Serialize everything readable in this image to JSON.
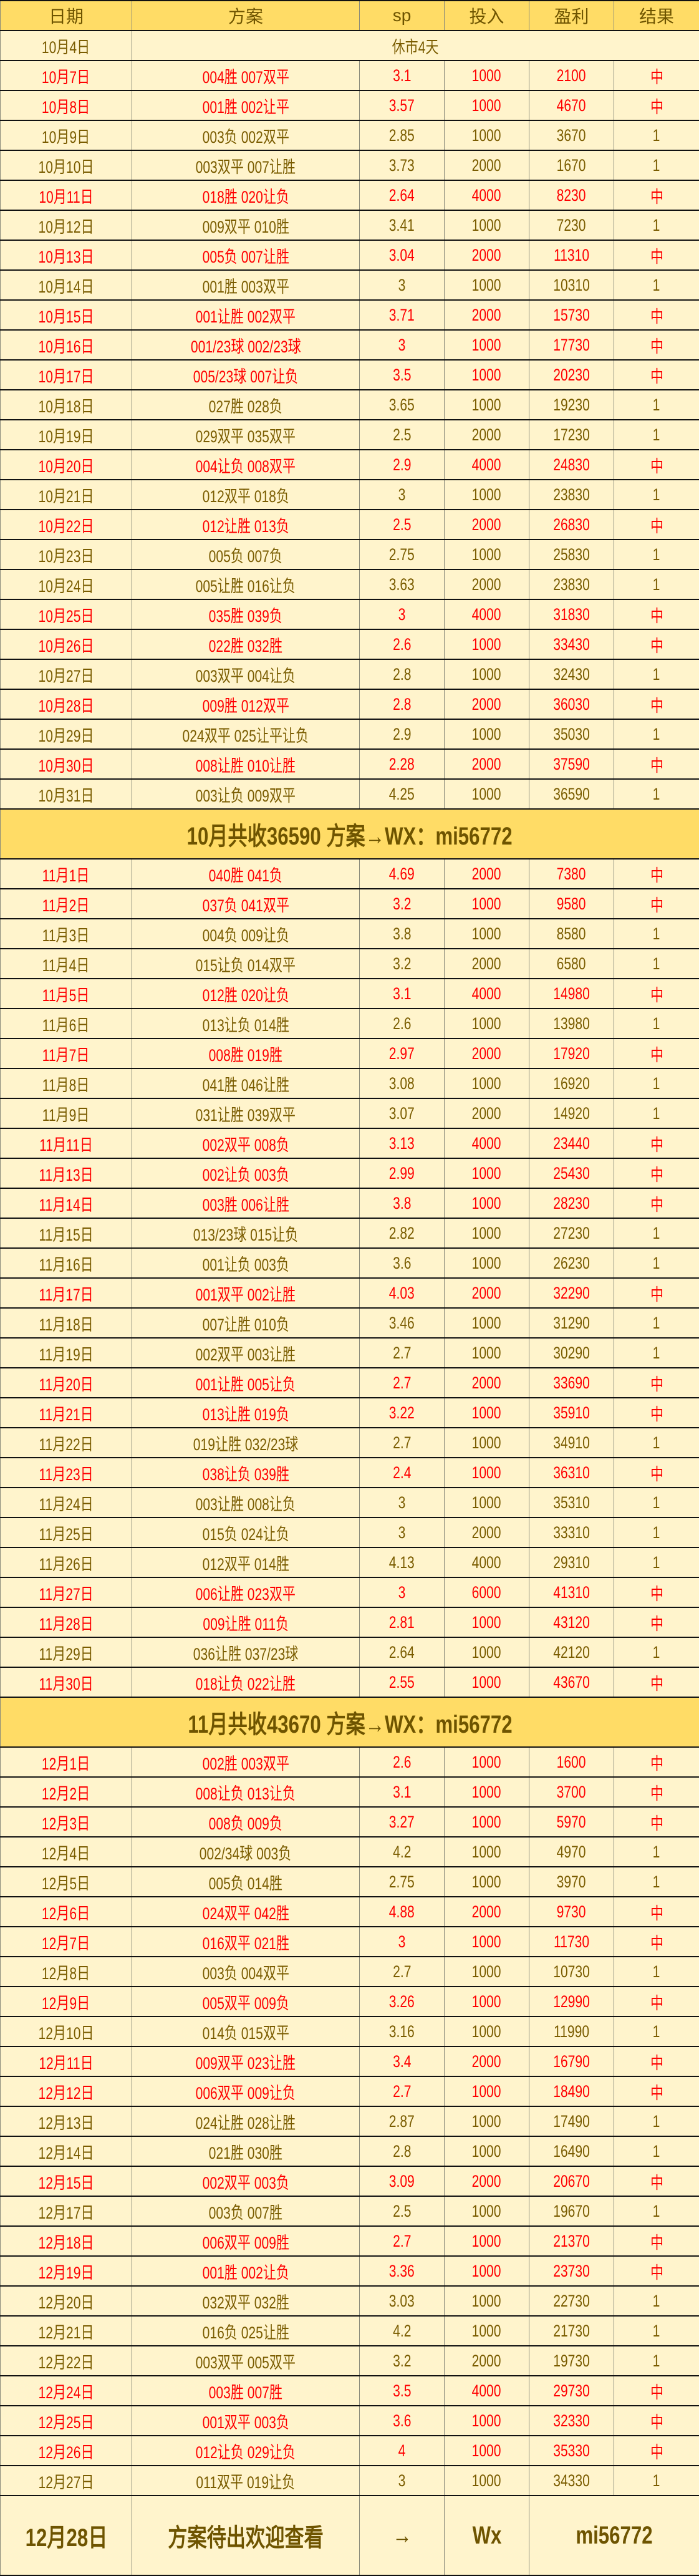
{
  "colors": {
    "header_bg": "#FFDC66",
    "row_bg": "#FFF4CC",
    "text": "#7A5C00",
    "hit": "#FF0000"
  },
  "headers": [
    "日期",
    "方案",
    "sp",
    "投入",
    "盈利",
    "结果"
  ],
  "rest_row": {
    "date": "10月4日",
    "note": "休市4天"
  },
  "october": [
    [
      "10月7日",
      "004胜  007双平",
      "3.1",
      "1000",
      "2100",
      "中"
    ],
    [
      "10月8日",
      "001胜  002让平",
      "3.57",
      "1000",
      "4670",
      "中"
    ],
    [
      "10月9日",
      "003负  002双平",
      "2.85",
      "1000",
      "3670",
      "1"
    ],
    [
      "10月10日",
      "003双平  007让胜",
      "3.73",
      "2000",
      "1670",
      "1"
    ],
    [
      "10月11日",
      "018胜  020让负",
      "2.64",
      "4000",
      "8230",
      "中"
    ],
    [
      "10月12日",
      "009双平  010胜",
      "3.41",
      "1000",
      "7230",
      "1"
    ],
    [
      "10月13日",
      "005负  007让胜",
      "3.04",
      "2000",
      "11310",
      "中"
    ],
    [
      "10月14日",
      "001胜  003双平",
      "3",
      "1000",
      "10310",
      "1"
    ],
    [
      "10月15日",
      "001让胜  002双平",
      "3.71",
      "2000",
      "15730",
      "中"
    ],
    [
      "10月16日",
      "001/23球  002/23球",
      "3",
      "1000",
      "17730",
      "中"
    ],
    [
      "10月17日",
      "005/23球  007让负",
      "3.5",
      "1000",
      "20230",
      "中"
    ],
    [
      "10月18日",
      "027胜  028负",
      "3.65",
      "1000",
      "19230",
      "1"
    ],
    [
      "10月19日",
      "029双平  035双平",
      "2.5",
      "2000",
      "17230",
      "1"
    ],
    [
      "10月20日",
      "004让负  008双平",
      "2.9",
      "4000",
      "24830",
      "中"
    ],
    [
      "10月21日",
      "012双平  018负",
      "3",
      "1000",
      "23830",
      "1"
    ],
    [
      "10月22日",
      "012让胜  013负",
      "2.5",
      "2000",
      "26830",
      "中"
    ],
    [
      "10月23日",
      "005负  007负",
      "2.75",
      "1000",
      "25830",
      "1"
    ],
    [
      "10月24日",
      "005让胜  016让负",
      "3.63",
      "2000",
      "23830",
      "1"
    ],
    [
      "10月25日",
      "035胜  039负",
      "3",
      "4000",
      "31830",
      "中"
    ],
    [
      "10月26日",
      "022胜  032胜",
      "2.6",
      "1000",
      "33430",
      "中"
    ],
    [
      "10月27日",
      "003双平  004让负",
      "2.8",
      "1000",
      "32430",
      "1"
    ],
    [
      "10月28日",
      "009胜  012双平",
      "2.8",
      "2000",
      "36030",
      "中"
    ],
    [
      "10月29日",
      "024双平  025让平让负",
      "2.9",
      "1000",
      "35030",
      "1"
    ],
    [
      "10月30日",
      "008让胜  010让胜",
      "2.28",
      "2000",
      "37590",
      "中"
    ],
    [
      "10月31日",
      "003让负  009双平",
      "4.25",
      "1000",
      "36590",
      "1"
    ]
  ],
  "october_summary": "10月共收36590 方案→WX：mi56772",
  "november": [
    [
      "11月1日",
      "040胜  041负",
      "4.69",
      "2000",
      "7380",
      "中"
    ],
    [
      "11月2日",
      "037负  041双平",
      "3.2",
      "1000",
      "9580",
      "中"
    ],
    [
      "11月3日",
      "004负  009让负",
      "3.8",
      "1000",
      "8580",
      "1"
    ],
    [
      "11月4日",
      "015让负  014双平",
      "3.2",
      "2000",
      "6580",
      "1"
    ],
    [
      "11月5日",
      "012胜  020让负",
      "3.1",
      "4000",
      "14980",
      "中"
    ],
    [
      "11月6日",
      "013让负  014胜",
      "2.6",
      "1000",
      "13980",
      "1"
    ],
    [
      "11月7日",
      "008胜  019胜",
      "2.97",
      "2000",
      "17920",
      "中"
    ],
    [
      "11月8日",
      "041胜  046让胜",
      "3.08",
      "1000",
      "16920",
      "1"
    ],
    [
      "11月9日",
      "031让胜  039双平",
      "3.07",
      "2000",
      "14920",
      "1"
    ],
    [
      "11月11日",
      "002双平  008负",
      "3.13",
      "4000",
      "23440",
      "中"
    ],
    [
      "11月13日",
      "002让负  003负",
      "2.99",
      "1000",
      "25430",
      "中"
    ],
    [
      "11月14日",
      "003胜  006让胜",
      "3.8",
      "1000",
      "28230",
      "中"
    ],
    [
      "11月15日",
      "013/23球  015让负",
      "2.82",
      "1000",
      "27230",
      "1"
    ],
    [
      "11月16日",
      "001让负  003负",
      "3.6",
      "1000",
      "26230",
      "1"
    ],
    [
      "11月17日",
      "001双平  002让胜",
      "4.03",
      "2000",
      "32290",
      "中"
    ],
    [
      "11月18日",
      "007让胜  010负",
      "3.46",
      "1000",
      "31290",
      "1"
    ],
    [
      "11月19日",
      "002双平   003让胜",
      "2.7",
      "1000",
      "30290",
      "1"
    ],
    [
      "11月20日",
      "001让胜   005让负",
      "2.7",
      "2000",
      "33690",
      "中"
    ],
    [
      "11月21日",
      "013让胜   019负",
      "3.22",
      "1000",
      "35910",
      "中"
    ],
    [
      "11月22日",
      "019让胜   032/23球",
      "2.7",
      "1000",
      "34910",
      "1"
    ],
    [
      "11月23日",
      "038让负  039胜",
      "2.4",
      "1000",
      "36310",
      "中"
    ],
    [
      "11月24日",
      "003让胜  008让负",
      "3",
      "1000",
      "35310",
      "1"
    ],
    [
      "11月25日",
      "015负   024让负",
      "3",
      "2000",
      "33310",
      "1"
    ],
    [
      "11月26日",
      "012双平  014胜",
      "4.13",
      "4000",
      "29310",
      "1"
    ],
    [
      "11月27日",
      "006让胜  023双平",
      "3",
      "6000",
      "41310",
      "中"
    ],
    [
      "11月28日",
      "009让胜  011负",
      "2.81",
      "1000",
      "43120",
      "中"
    ],
    [
      "11月29日",
      "036让胜  037/23球",
      "2.64",
      "1000",
      "42120",
      "1"
    ],
    [
      "11月30日",
      "018让负  022让胜",
      "2.55",
      "1000",
      "43670",
      "中"
    ]
  ],
  "november_summary": "11月共收43670 方案→WX：mi56772",
  "december": [
    [
      "12月1日",
      "002胜  003双平",
      "2.6",
      "1000",
      "1600",
      "中"
    ],
    [
      "12月2日",
      "008让负  013让负",
      "3.1",
      "1000",
      "3700",
      "中"
    ],
    [
      "12月3日",
      "008负  009负",
      "3.27",
      "1000",
      "5970",
      "中"
    ],
    [
      "12月4日",
      "002/34球  003负",
      "4.2",
      "1000",
      "4970",
      "1"
    ],
    [
      "12月5日",
      "005负  014胜",
      "2.75",
      "1000",
      "3970",
      "1"
    ],
    [
      "12月6日",
      "024双平  042胜",
      "4.88",
      "2000",
      "9730",
      "中"
    ],
    [
      "12月7日",
      "016双平  021胜",
      "3",
      "1000",
      "11730",
      "中"
    ],
    [
      "12月8日",
      "003负  004双平",
      "2.7",
      "1000",
      "10730",
      "1"
    ],
    [
      "12月9日",
      "005双平  009负",
      "3.26",
      "1000",
      "12990",
      "中"
    ],
    [
      "12月10日",
      "014负  015双平",
      "3.16",
      "1000",
      "11990",
      "1"
    ],
    [
      "12月11日",
      "009双平  023让胜",
      "3.4",
      "2000",
      "16790",
      "中"
    ],
    [
      "12月12日",
      "006双平  009让负",
      "2.7",
      "1000",
      "18490",
      "中"
    ],
    [
      "12月13日",
      "024让胜  028让胜",
      "2.87",
      "1000",
      "17490",
      "1"
    ],
    [
      "12月14日",
      "021胜  030胜",
      "2.8",
      "1000",
      "16490",
      "1"
    ],
    [
      "12月15日",
      "002双平  003负",
      "3.09",
      "2000",
      "20670",
      "中"
    ],
    [
      "12月17日",
      "003负  007胜",
      "2.5",
      "1000",
      "19670",
      "1"
    ],
    [
      "12月18日",
      "006双平  009胜",
      "2.7",
      "1000",
      "21370",
      "中"
    ],
    [
      "12月19日",
      "001胜  002让负",
      "3.36",
      "1000",
      "23730",
      "中"
    ],
    [
      "12月20日",
      "032双平  032胜",
      "3.03",
      "1000",
      "22730",
      "1"
    ],
    [
      "12月21日",
      "016负  025让胜",
      "4.2",
      "1000",
      "21730",
      "1"
    ],
    [
      "12月22日",
      "003双平  005双平",
      "3.2",
      "2000",
      "19730",
      "1"
    ],
    [
      "12月24日",
      "003胜  007胜",
      "3.5",
      "4000",
      "29730",
      "中"
    ],
    [
      "12月25日",
      "001双平  003负",
      "3.6",
      "1000",
      "32330",
      "中"
    ],
    [
      "12月26日",
      "012让负  029让负",
      "4",
      "1000",
      "35330",
      "中"
    ],
    [
      "12月27日",
      "011双平  019让负",
      "3",
      "1000",
      "34330",
      "1"
    ]
  ],
  "final_row": {
    "date": "12月28日",
    "plan": "方案待出欢迎查看",
    "arrow": "→",
    "wx": "Wx",
    "id": "mi56772"
  }
}
